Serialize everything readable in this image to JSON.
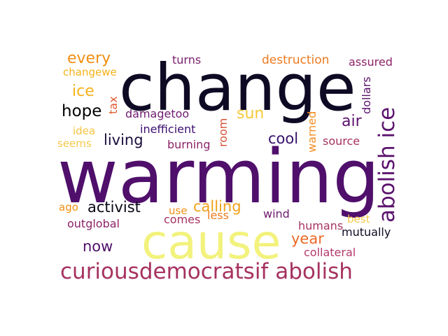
{
  "colors": {
    "background": "#ffffff",
    "palette": [
      "#0f0a24",
      "#4f1068",
      "#6e1b6e",
      "#a63060",
      "#cf4446",
      "#ed6925",
      "#f6a30f",
      "#f2f27d"
    ]
  },
  "words": [
    {
      "text": "change",
      "color": "#0f0a24"
    },
    {
      "text": "warming",
      "color": "#4f0f6b"
    },
    {
      "text": "cause",
      "color": "#f2f27d"
    },
    {
      "text": "curiousdemocratsif abolish",
      "color": "#a63260"
    },
    {
      "text": "abolish ice",
      "color": "#5c136e"
    },
    {
      "text": "every",
      "color": "#f08f12"
    },
    {
      "text": "turns",
      "color": "#7a1f6d"
    },
    {
      "text": "destruction",
      "color": "#ed7a1e"
    },
    {
      "text": "assured",
      "color": "#8c2369"
    },
    {
      "text": "changewe",
      "color": "#f6b21a"
    },
    {
      "text": "ice",
      "color": "#f6b21a"
    },
    {
      "text": "tax",
      "color": "#e15b33"
    },
    {
      "text": "dollars",
      "color": "#5c136e"
    },
    {
      "text": "hope",
      "color": "#000004"
    },
    {
      "text": "damagetoo",
      "color": "#6e1b6e"
    },
    {
      "text": "sun",
      "color": "#f5c93a"
    },
    {
      "text": "air",
      "color": "#5c136e"
    },
    {
      "text": "room",
      "color": "#d85237"
    },
    {
      "text": "warned",
      "color": "#f38e22"
    },
    {
      "text": "idea",
      "color": "#f5c441"
    },
    {
      "text": "inefficient",
      "color": "#3b0f6f"
    },
    {
      "text": "living",
      "color": "#1a0d3b"
    },
    {
      "text": "cool",
      "color": "#37106b"
    },
    {
      "text": "seems",
      "color": "#f6c94a"
    },
    {
      "text": "burning",
      "color": "#8c2369"
    },
    {
      "text": "source",
      "color": "#a63260"
    },
    {
      "text": "ago",
      "color": "#f08f12"
    },
    {
      "text": "activist",
      "color": "#0a0a18"
    },
    {
      "text": "calling",
      "color": "#f0a11c"
    },
    {
      "text": "use",
      "color": "#f08f12"
    },
    {
      "text": "less",
      "color": "#ed7a1e"
    },
    {
      "text": "comes",
      "color": "#a63260"
    },
    {
      "text": "wind",
      "color": "#6e1b6e"
    },
    {
      "text": "best",
      "color": "#f6c94a"
    },
    {
      "text": "outglobal",
      "color": "#8c2369"
    },
    {
      "text": "humans",
      "color": "#a63260"
    },
    {
      "text": "mutually",
      "color": "#0f0a24"
    },
    {
      "text": "year",
      "color": "#ed6925"
    },
    {
      "text": "now",
      "color": "#4f1068"
    },
    {
      "text": "collateral",
      "color": "#b5386b"
    }
  ]
}
